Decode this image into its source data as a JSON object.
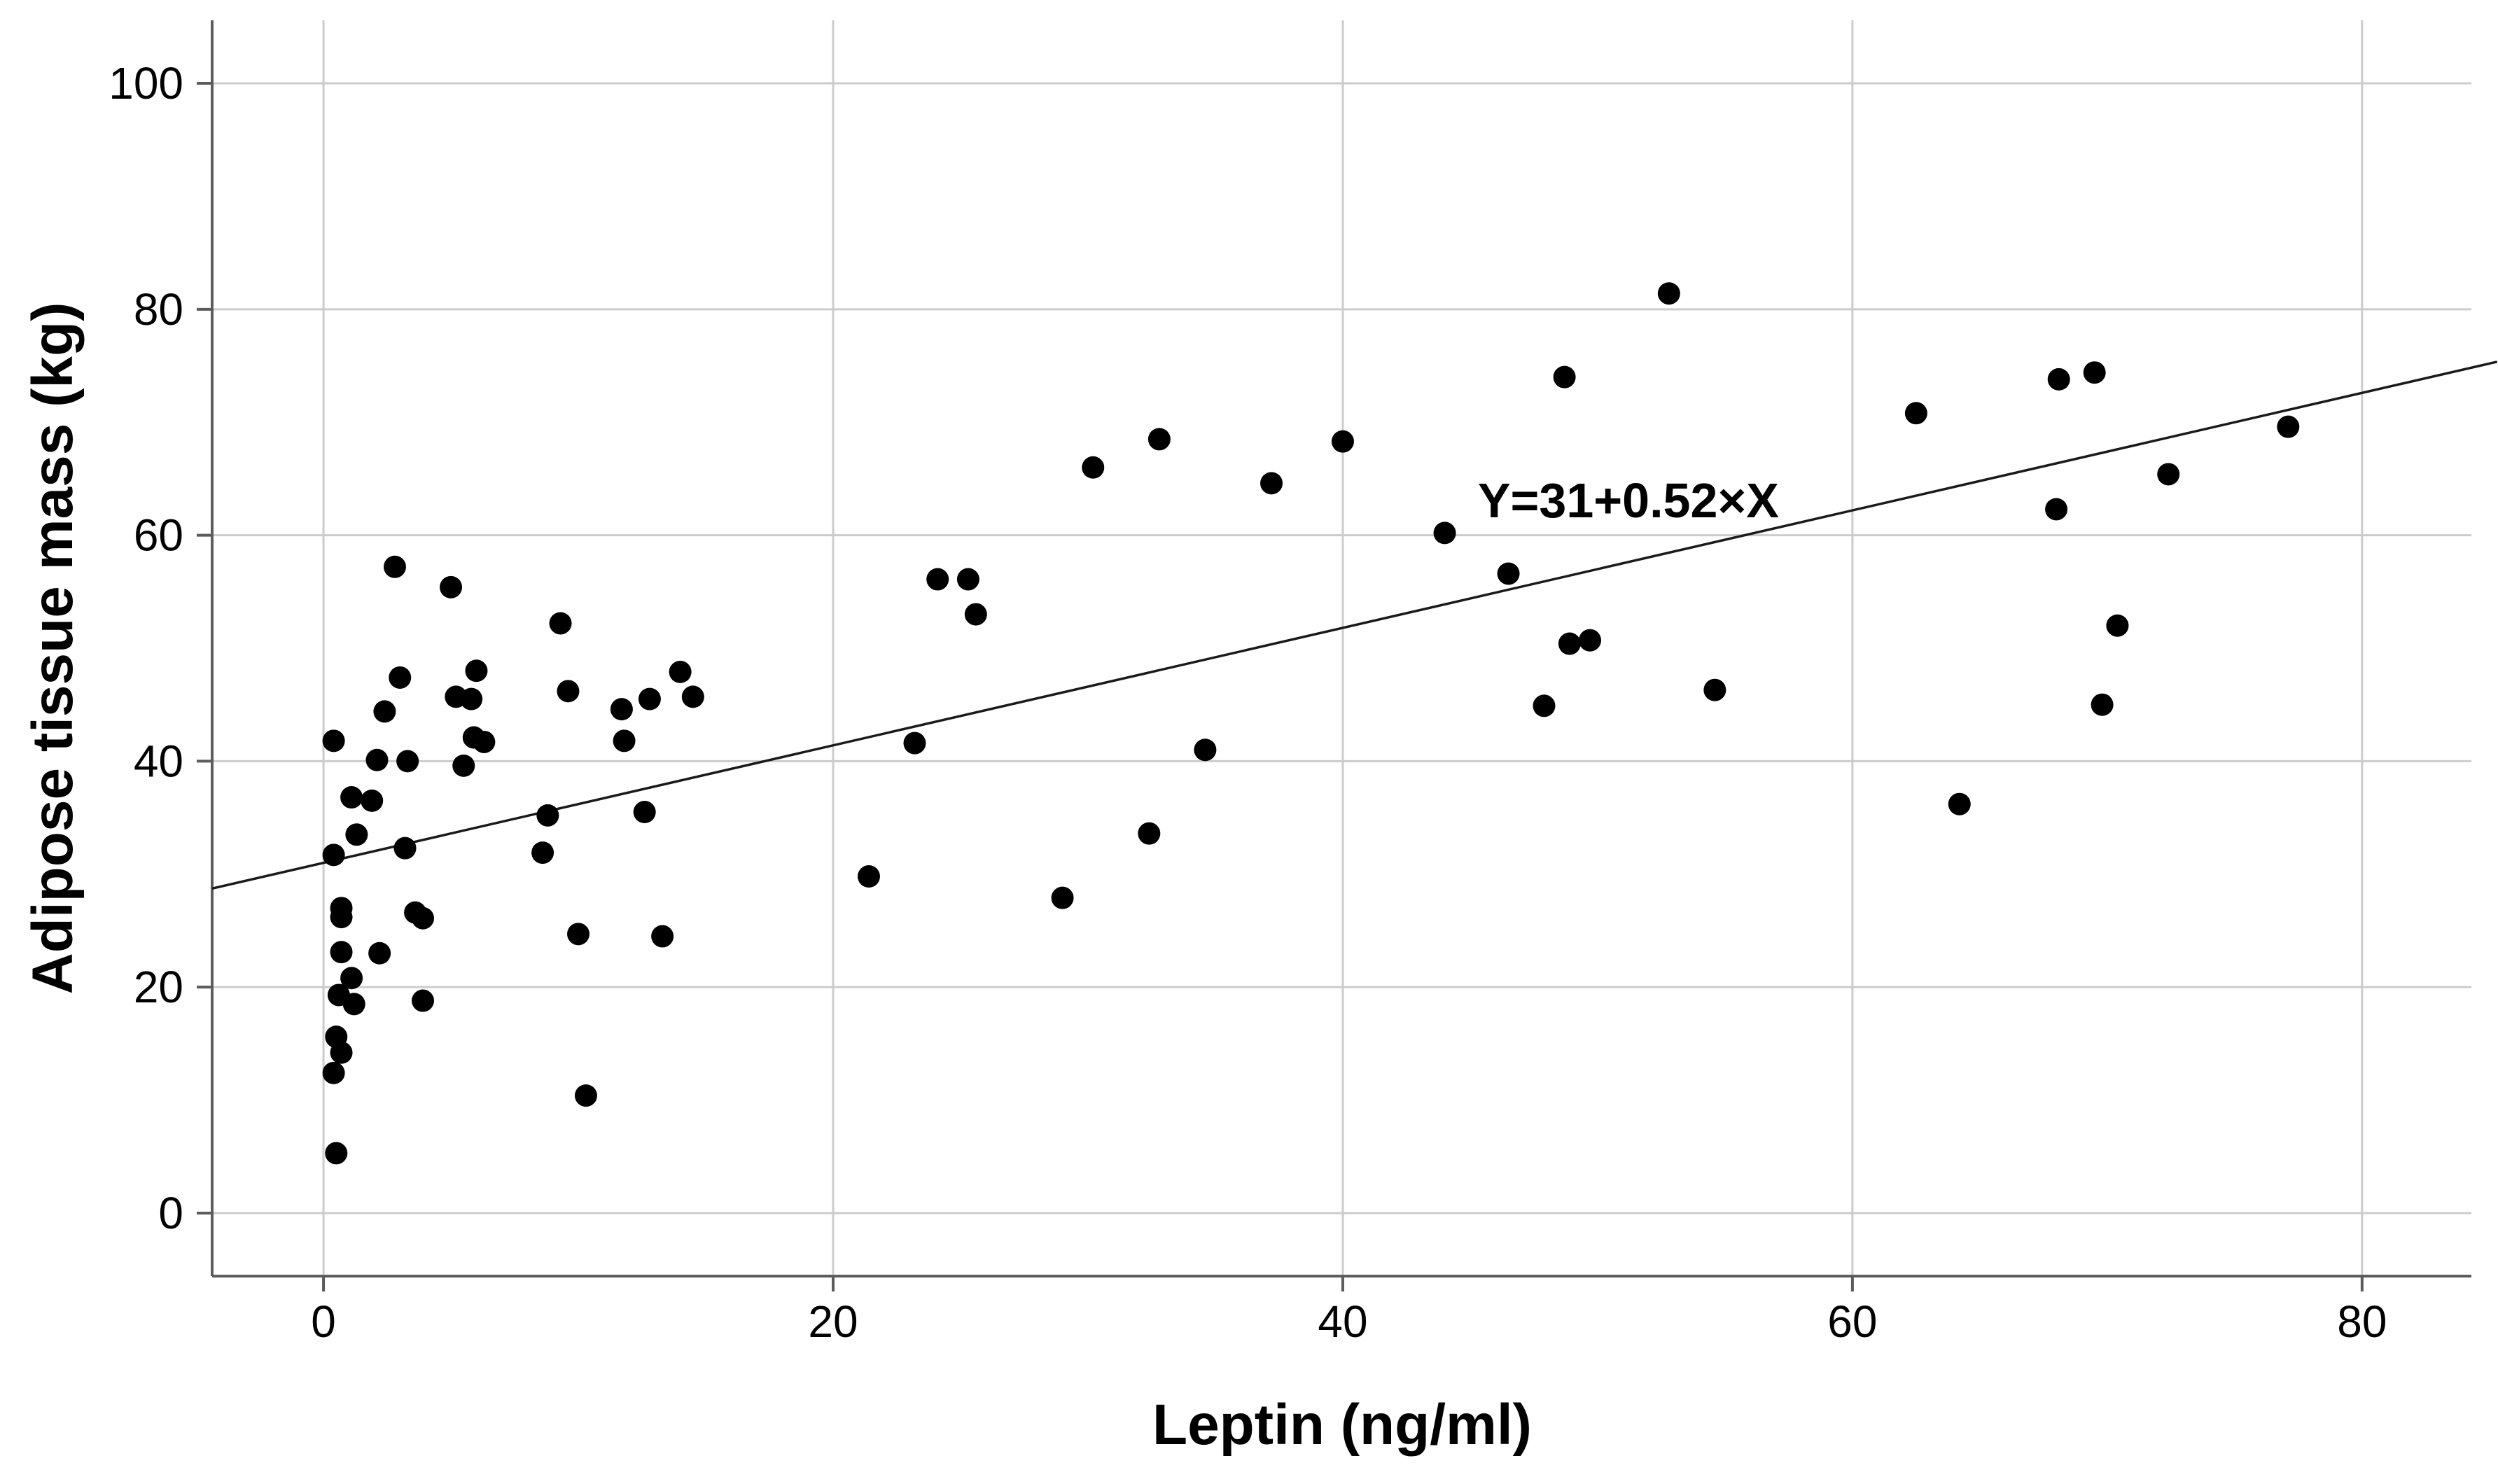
{
  "figure": {
    "kind": "statistical scatter plot with fitted regression line",
    "background": "#ffffff"
  },
  "colors": {
    "dot": "#000000",
    "regression_line": "#1a1a1a",
    "axis": "#5c5c5c",
    "grid": "#cccccc",
    "text": "#000000",
    "background": "#ffffff"
  },
  "chart_data": {
    "type": "scatter",
    "title": "",
    "xlabel": "Leptin (ng/ml)",
    "ylabel": "Adipose tissue mass (kg)",
    "x_ticks": [
      0,
      20,
      40,
      60,
      80
    ],
    "y_ticks": [
      0,
      20,
      40,
      60,
      80,
      100
    ],
    "xlim": [
      -4.37,
      84.29
    ],
    "ylim": [
      -5.58,
      105.58
    ],
    "grid": true,
    "legend": false,
    "annotation": {
      "text": "Y=31+0.52×X",
      "x": 45.3,
      "y": 61.6
    },
    "regression_line": {
      "label": "Y=31+0.52×X",
      "intercept": 31,
      "slope": 0.52,
      "x_start": -4.37,
      "x_end": 85.3
    },
    "points": [
      [
        0.5,
        5.3
      ],
      [
        10.3,
        10.4
      ],
      [
        0.4,
        12.4
      ],
      [
        0.7,
        14.2
      ],
      [
        0.5,
        15.6
      ],
      [
        1.2,
        18.5
      ],
      [
        0.6,
        19.3
      ],
      [
        3.9,
        18.8
      ],
      [
        1.1,
        20.8
      ],
      [
        2.2,
        23.0
      ],
      [
        0.7,
        23.1
      ],
      [
        10.0,
        24.7
      ],
      [
        13.3,
        24.5
      ],
      [
        0.7,
        26.2
      ],
      [
        0.7,
        27.0
      ],
      [
        3.6,
        26.6
      ],
      [
        3.9,
        26.1
      ],
      [
        21.4,
        29.8
      ],
      [
        29.0,
        27.9
      ],
      [
        0.4,
        31.7
      ],
      [
        1.3,
        33.5
      ],
      [
        3.2,
        32.3
      ],
      [
        8.6,
        31.9
      ],
      [
        8.8,
        35.2
      ],
      [
        12.6,
        35.5
      ],
      [
        1.1,
        36.8
      ],
      [
        1.9,
        36.5
      ],
      [
        32.4,
        33.6
      ],
      [
        64.2,
        36.2
      ],
      [
        0.4,
        41.8
      ],
      [
        2.1,
        40.1
      ],
      [
        3.3,
        40.0
      ],
      [
        5.5,
        39.6
      ],
      [
        5.9,
        42.1
      ],
      [
        6.3,
        41.7
      ],
      [
        11.8,
        41.8
      ],
      [
        23.2,
        41.6
      ],
      [
        34.6,
        41.0
      ],
      [
        2.4,
        44.4
      ],
      [
        11.7,
        44.6
      ],
      [
        5.2,
        45.7
      ],
      [
        5.8,
        45.5
      ],
      [
        12.8,
        45.5
      ],
      [
        14.5,
        45.7
      ],
      [
        9.6,
        46.2
      ],
      [
        3.0,
        47.4
      ],
      [
        6.0,
        48.0
      ],
      [
        14.0,
        47.9
      ],
      [
        47.9,
        44.9
      ],
      [
        69.8,
        45.0
      ],
      [
        54.6,
        46.3
      ],
      [
        48.9,
        50.4
      ],
      [
        49.7,
        50.7
      ],
      [
        70.4,
        52.0
      ],
      [
        9.3,
        52.2
      ],
      [
        25.6,
        53.0
      ],
      [
        5.0,
        55.4
      ],
      [
        24.1,
        56.1
      ],
      [
        25.3,
        56.1
      ],
      [
        46.5,
        56.6
      ],
      [
        2.8,
        57.2
      ],
      [
        44.0,
        60.2
      ],
      [
        68.0,
        62.3
      ],
      [
        37.2,
        64.6
      ],
      [
        72.4,
        65.4
      ],
      [
        30.2,
        66.0
      ],
      [
        40.0,
        68.3
      ],
      [
        32.8,
        68.5
      ],
      [
        77.1,
        69.6
      ],
      [
        62.5,
        70.8
      ],
      [
        68.1,
        73.8
      ],
      [
        48.7,
        74.0
      ],
      [
        69.5,
        74.4
      ],
      [
        52.8,
        81.4
      ]
    ]
  }
}
